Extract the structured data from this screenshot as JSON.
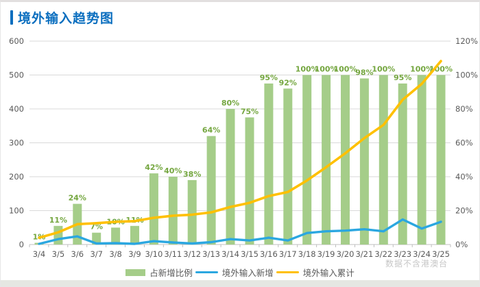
{
  "header": {
    "title": "境外输入趋势图"
  },
  "footer_note": "数据不含港澳台",
  "colors": {
    "title": "#0a6ebf",
    "bar": "#a5cd89",
    "bar_label": "#74a63f",
    "line_new": "#2ba7e0",
    "line_cum": "#ffc000",
    "axis_text": "#595959",
    "grid": "#d9d9d9",
    "axis_line": "#bfbfbf",
    "note": "#c6c6c6"
  },
  "chart_data": {
    "type": "combo",
    "title": "境外输入趋势图",
    "categories": [
      "3/4",
      "3/5",
      "3/6",
      "3/7",
      "3/8",
      "3/9",
      "3/10",
      "3/11",
      "3/12",
      "3/13",
      "3/14",
      "3/15",
      "3/16",
      "3/17",
      "3/18",
      "3/19",
      "3/20",
      "3/21",
      "3/22",
      "3/23",
      "3/24",
      "3/25"
    ],
    "series": [
      {
        "name": "占新增比例",
        "type": "bar",
        "axis": "right",
        "unit": "%",
        "color": "#a5cd89",
        "label_color": "#74a63f",
        "values": [
          1,
          11,
          24,
          7,
          10,
          11,
          42,
          40,
          38,
          64,
          80,
          75,
          95,
          92,
          100,
          100,
          100,
          98,
          100,
          95,
          100,
          100
        ]
      },
      {
        "name": "境外输入新增",
        "type": "line",
        "axis": "left",
        "color": "#2ba7e0",
        "values": [
          2,
          16,
          24,
          3,
          4,
          2,
          10,
          6,
          3,
          7,
          16,
          12,
          20,
          12,
          34,
          39,
          41,
          45,
          39,
          74,
          47,
          67
        ]
      },
      {
        "name": "境外输入累计",
        "type": "line",
        "axis": "left",
        "color": "#ffc000",
        "values": [
          20,
          36,
          60,
          63,
          67,
          69,
          79,
          85,
          88,
          95,
          111,
          123,
          143,
          155,
          189,
          228,
          269,
          314,
          353,
          427,
          474,
          541
        ]
      }
    ],
    "left_axis": {
      "min": 0,
      "max": 600,
      "step": 100,
      "tick_labels": [
        "0",
        "100",
        "200",
        "300",
        "400",
        "500",
        "600"
      ]
    },
    "right_axis": {
      "min": 0,
      "max": 120,
      "step": 20,
      "unit": "%",
      "tick_labels": [
        "0%",
        "20%",
        "40%",
        "60%",
        "80%",
        "100%",
        "120%"
      ]
    },
    "legend": {
      "position": "bottom",
      "entries": [
        "占新增比例",
        "境外输入新增",
        "境外输入累计"
      ]
    },
    "grid": "horizontal",
    "bar_labels": [
      "1%",
      "11%",
      "24%",
      "7%",
      "10%",
      "11%",
      "42%",
      "40%",
      "38%",
      "64%",
      "80%",
      "75%",
      "95%",
      "92%",
      "100%",
      "100%",
      "100%",
      "98%",
      "100%",
      "95%",
      "100%",
      "100%"
    ]
  }
}
